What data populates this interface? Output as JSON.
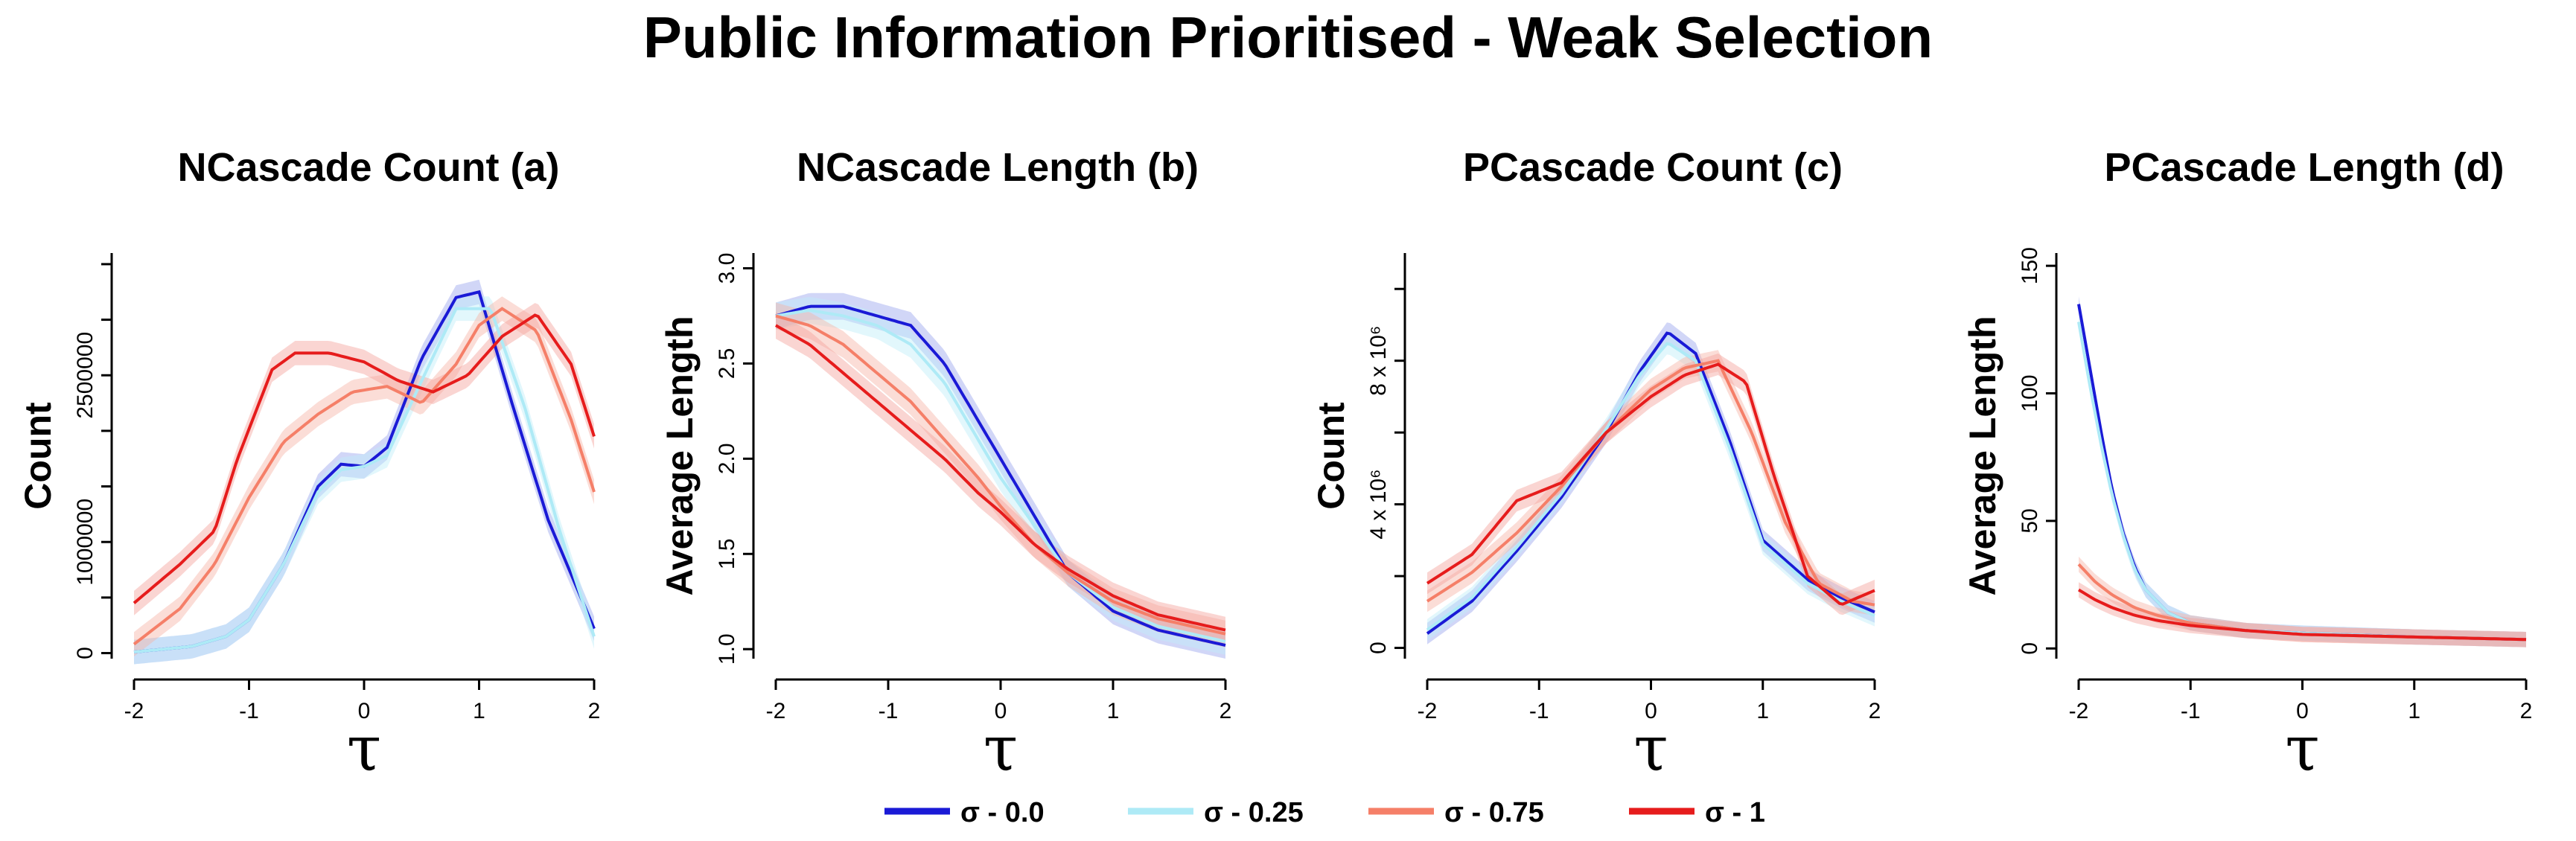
{
  "main_title": "Public Information Prioritised - Weak Selection",
  "legend": [
    {
      "label": "σ - 0.0",
      "color": "#1a1ad6"
    },
    {
      "label": "σ - 0.25",
      "color": "#aeeaf6"
    },
    {
      "label": "σ - 0.75",
      "color": "#f57f68"
    },
    {
      "label": "σ - 1",
      "color": "#e61c1c"
    }
  ],
  "band_colors": [
    "#9aa4ee",
    "#bfeef8",
    "#f7b3a6",
    "#f3a29c"
  ],
  "chart_data": [
    {
      "type": "line",
      "title": "NCascade Count (a)",
      "xlabel": "τ",
      "ylabel": "Count",
      "xlim": [
        -2,
        2
      ],
      "ylim": [
        -50000,
        3600000
      ],
      "xticks": [
        -2,
        -1,
        0,
        1,
        2
      ],
      "xtick_labels": [
        "-2",
        "-1",
        "0",
        "1",
        "2"
      ],
      "yticks": [
        0,
        1000000,
        2500000
      ],
      "ytick_labels": [
        "0",
        "1000000",
        "2500000"
      ],
      "yticks_minor": [
        500000,
        1500000,
        2000000,
        3000000,
        3500000
      ],
      "ytick_rotated": true,
      "band_width": 110000,
      "series": [
        {
          "name": "σ - 0.0",
          "x": [
            -2,
            -1.5,
            -1.2,
            -1,
            -0.7,
            -0.4,
            -0.2,
            0,
            0.2,
            0.5,
            0.8,
            1,
            1.3,
            1.6,
            2
          ],
          "y": [
            10000,
            60000,
            150000,
            300000,
            800000,
            1500000,
            1700000,
            1680000,
            1850000,
            2650000,
            3200000,
            3250000,
            2200000,
            1200000,
            220000
          ]
        },
        {
          "name": "σ - 0.25",
          "x": [
            -2,
            -1.5,
            -1.2,
            -1,
            -0.7,
            -0.4,
            -0.2,
            0,
            0.2,
            0.5,
            0.8,
            1.1,
            1.4,
            1.7,
            2
          ],
          "y": [
            10000,
            60000,
            150000,
            300000,
            800000,
            1450000,
            1650000,
            1680000,
            1780000,
            2450000,
            3100000,
            3100000,
            2200000,
            1100000,
            150000
          ]
        },
        {
          "name": "σ - 0.75",
          "x": [
            -2,
            -1.6,
            -1.3,
            -1,
            -0.7,
            -0.4,
            -0.1,
            0.2,
            0.5,
            0.8,
            1,
            1.2,
            1.5,
            1.8,
            2
          ],
          "y": [
            80000,
            400000,
            800000,
            1400000,
            1900000,
            2150000,
            2350000,
            2400000,
            2250000,
            2600000,
            2950000,
            3100000,
            2900000,
            2100000,
            1450000
          ]
        },
        {
          "name": "σ - 1",
          "x": [
            -2,
            -1.6,
            -1.3,
            -1.1,
            -0.8,
            -0.6,
            -0.3,
            0,
            0.3,
            0.6,
            0.9,
            1.2,
            1.5,
            1.8,
            2
          ],
          "y": [
            450000,
            800000,
            1100000,
            1750000,
            2550000,
            2700000,
            2700000,
            2620000,
            2450000,
            2350000,
            2500000,
            2850000,
            3050000,
            2600000,
            1950000
          ]
        }
      ]
    },
    {
      "type": "line",
      "title": "NCascade Length (b)",
      "xlabel": "τ",
      "ylabel": "Average Length",
      "xlim": [
        -2,
        2
      ],
      "ylim": [
        0.95,
        3.08
      ],
      "xticks": [
        -2,
        -1,
        0,
        1,
        2
      ],
      "xtick_labels": [
        "-2",
        "-1",
        "0",
        "1",
        "2"
      ],
      "yticks": [
        1.0,
        1.5,
        2.0,
        2.5,
        3.0
      ],
      "ytick_labels": [
        "1.0",
        "1.5",
        "2.0",
        "2.5",
        "3.0"
      ],
      "ytick_rotated": true,
      "band_width": 0.07,
      "series": [
        {
          "name": "σ - 0.0",
          "x": [
            -2,
            -1.7,
            -1.4,
            -1.1,
            -0.8,
            -0.5,
            -0.2,
            0,
            0.3,
            0.6,
            1,
            1.4,
            2
          ],
          "y": [
            2.75,
            2.8,
            2.8,
            2.75,
            2.7,
            2.5,
            2.2,
            2.0,
            1.7,
            1.4,
            1.2,
            1.1,
            1.02
          ]
        },
        {
          "name": "σ - 0.25",
          "x": [
            -2,
            -1.7,
            -1.4,
            -1.1,
            -0.8,
            -0.5,
            -0.2,
            0,
            0.3,
            0.6,
            1,
            1.4,
            2
          ],
          "y": [
            2.75,
            2.78,
            2.75,
            2.7,
            2.6,
            2.4,
            2.1,
            1.9,
            1.65,
            1.4,
            1.22,
            1.12,
            1.04
          ]
        },
        {
          "name": "σ - 0.75",
          "x": [
            -2,
            -1.7,
            -1.4,
            -1.1,
            -0.8,
            -0.5,
            -0.2,
            0,
            0.3,
            0.6,
            1,
            1.4,
            2
          ],
          "y": [
            2.75,
            2.7,
            2.6,
            2.45,
            2.3,
            2.1,
            1.9,
            1.75,
            1.55,
            1.4,
            1.25,
            1.16,
            1.08
          ]
        },
        {
          "name": "σ - 1",
          "x": [
            -2,
            -1.7,
            -1.4,
            -1.1,
            -0.8,
            -0.5,
            -0.2,
            0,
            0.3,
            0.6,
            1,
            1.4,
            2
          ],
          "y": [
            2.7,
            2.6,
            2.45,
            2.3,
            2.15,
            2.0,
            1.82,
            1.72,
            1.55,
            1.42,
            1.28,
            1.18,
            1.1
          ]
        }
      ]
    },
    {
      "type": "line",
      "title": "PCascade Count (c)",
      "xlabel": "τ",
      "ylabel": "Count",
      "xlim": [
        -2,
        2
      ],
      "ylim": [
        -300000,
        11000000
      ],
      "xticks": [
        -2,
        -1,
        0,
        1,
        2
      ],
      "xtick_labels": [
        "-2",
        "-1",
        "0",
        "1",
        "2"
      ],
      "yticks": [
        0,
        4000000,
        8000000
      ],
      "ytick_labels": [
        "0",
        "4 x 10⁶",
        "8 x 10⁶"
      ],
      "yticks_minor": [
        2000000,
        6000000,
        10000000
      ],
      "ytick_rotated": true,
      "band_width": 300000,
      "series": [
        {
          "name": "σ - 0.0",
          "x": [
            -2,
            -1.6,
            -1.2,
            -0.8,
            -0.4,
            -0.1,
            0.15,
            0.4,
            0.7,
            1,
            1.4,
            1.7,
            2
          ],
          "y": [
            400000,
            1300000,
            2700000,
            4200000,
            6000000,
            7700000,
            8800000,
            8200000,
            5800000,
            3000000,
            1900000,
            1400000,
            1000000
          ]
        },
        {
          "name": "σ - 0.25",
          "x": [
            -2,
            -1.6,
            -1.2,
            -0.8,
            -0.4,
            -0.1,
            0.15,
            0.4,
            0.7,
            1,
            1.4,
            1.7,
            2
          ],
          "y": [
            500000,
            1400000,
            2800000,
            4300000,
            6100000,
            7600000,
            8500000,
            8000000,
            5600000,
            2900000,
            1800000,
            1300000,
            900000
          ]
        },
        {
          "name": "σ - 0.75",
          "x": [
            -2,
            -1.6,
            -1.2,
            -0.8,
            -0.4,
            0,
            0.3,
            0.6,
            0.9,
            1.2,
            1.5,
            1.8,
            2
          ],
          "y": [
            1300000,
            2100000,
            3200000,
            4500000,
            6000000,
            7200000,
            7800000,
            8000000,
            6000000,
            3500000,
            1800000,
            1300000,
            1200000
          ]
        },
        {
          "name": "σ - 1",
          "x": [
            -2,
            -1.6,
            -1.2,
            -0.8,
            -0.4,
            0,
            0.3,
            0.6,
            0.85,
            1.1,
            1.4,
            1.7,
            2
          ],
          "y": [
            1800000,
            2600000,
            4100000,
            4600000,
            6000000,
            7000000,
            7600000,
            7900000,
            7400000,
            4800000,
            2000000,
            1200000,
            1600000
          ]
        }
      ]
    },
    {
      "type": "line",
      "title": "PCascade Length (d)",
      "xlabel": "τ",
      "ylabel": "Average Length",
      "xlim": [
        -2,
        2
      ],
      "ylim": [
        -4,
        155
      ],
      "xticks": [
        -2,
        -1,
        0,
        1,
        2
      ],
      "xtick_labels": [
        "-2",
        "-1",
        "0",
        "1",
        "2"
      ],
      "yticks": [
        0,
        50,
        100,
        150
      ],
      "ytick_labels": [
        "0",
        "50",
        "100",
        "150"
      ],
      "ytick_rotated": true,
      "band_width": 3,
      "series": [
        {
          "name": "σ - 0.0",
          "x": [
            -2,
            -1.9,
            -1.8,
            -1.7,
            -1.6,
            -1.5,
            -1.4,
            -1.2,
            -1,
            -0.5,
            0,
            1,
            2
          ],
          "y": [
            135,
            110,
            85,
            62,
            45,
            32,
            23,
            14,
            10,
            7,
            6,
            4.5,
            3.5
          ]
        },
        {
          "name": "σ - 0.25",
          "x": [
            -2,
            -1.9,
            -1.8,
            -1.7,
            -1.6,
            -1.5,
            -1.4,
            -1.2,
            -1,
            -0.5,
            0,
            1,
            2
          ],
          "y": [
            128,
            103,
            80,
            60,
            44,
            31,
            23,
            14,
            10,
            7,
            6,
            4.5,
            3.5
          ]
        },
        {
          "name": "σ - 0.75",
          "x": [
            -2,
            -1.85,
            -1.7,
            -1.5,
            -1.3,
            -1,
            -0.5,
            0,
            1,
            2
          ],
          "y": [
            33,
            26,
            21,
            16,
            13,
            10,
            7,
            5.5,
            4.5,
            3.5
          ]
        },
        {
          "name": "σ - 1",
          "x": [
            -2,
            -1.85,
            -1.7,
            -1.5,
            -1.3,
            -1,
            -0.5,
            0,
            1,
            2
          ],
          "y": [
            23,
            19,
            16,
            13,
            11,
            9,
            7,
            5.5,
            4.5,
            3.5
          ]
        }
      ]
    }
  ]
}
